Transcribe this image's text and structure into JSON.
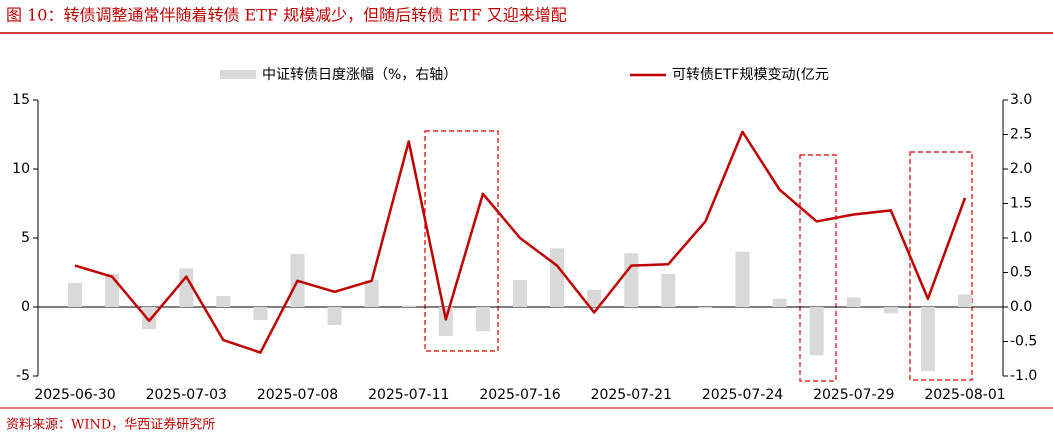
{
  "chart_data": {
    "type": "combo",
    "title": "图 10：转债调整通常伴随着转债 ETF 规模减少，但随后转债 ETF 又迎来增配",
    "source": "资料来源：WIND，华西证券研究所",
    "categories": [
      "2025-06-30",
      null,
      null,
      "2025-07-03",
      null,
      null,
      "2025-07-08",
      null,
      null,
      "2025-07-11",
      null,
      null,
      "2025-07-16",
      null,
      null,
      "2025-07-21",
      null,
      null,
      "2025-07-24",
      null,
      null,
      "2025-07-29",
      null,
      null,
      "2025-08-01"
    ],
    "series": [
      {
        "name": "中证转债日度涨幅（%，右轴）",
        "type": "bar",
        "axis": "y2",
        "color": "#d9d9d9",
        "values": [
          0.35,
          0.48,
          -0.32,
          0.56,
          0.16,
          -0.19,
          0.77,
          -0.26,
          0.39,
          0.02,
          -0.42,
          -0.35,
          0.39,
          0.85,
          0.25,
          0.78,
          0.48,
          -0.02,
          0.8,
          0.12,
          -0.7,
          0.14,
          -0.09,
          -0.93,
          0.18
        ]
      },
      {
        "name": "可转债ETF规模变动(亿元",
        "type": "line",
        "color": "#c00000",
        "values": [
          3.0,
          2.2,
          -1.0,
          2.2,
          -2.4,
          -3.3,
          1.9,
          1.1,
          1.9,
          12.0,
          -0.9,
          8.2,
          5.0,
          3.0,
          -0.4,
          3.0,
          3.1,
          6.2,
          12.7,
          8.5,
          6.2,
          6.7,
          7.0,
          0.6,
          7.9
        ]
      }
    ],
    "ylim": [
      -5,
      15
    ],
    "yticks": [
      -5,
      0,
      5,
      10,
      15
    ],
    "y2lim": [
      -1,
      3
    ],
    "y2ticks": [
      {
        "value": -1,
        "label": "-1.0"
      },
      {
        "value": -0.5,
        "label": "-0.5"
      },
      {
        "value": 0,
        "label": "0.0"
      },
      {
        "value": 0.5,
        "label": "0.5"
      },
      {
        "value": 1,
        "label": "1.0"
      },
      {
        "value": 1.5,
        "label": "1.5"
      },
      {
        "value": 2,
        "label": "2.0"
      },
      {
        "value": 2.5,
        "label": "2.5"
      },
      {
        "value": 3,
        "label": "3.0"
      }
    ]
  }
}
